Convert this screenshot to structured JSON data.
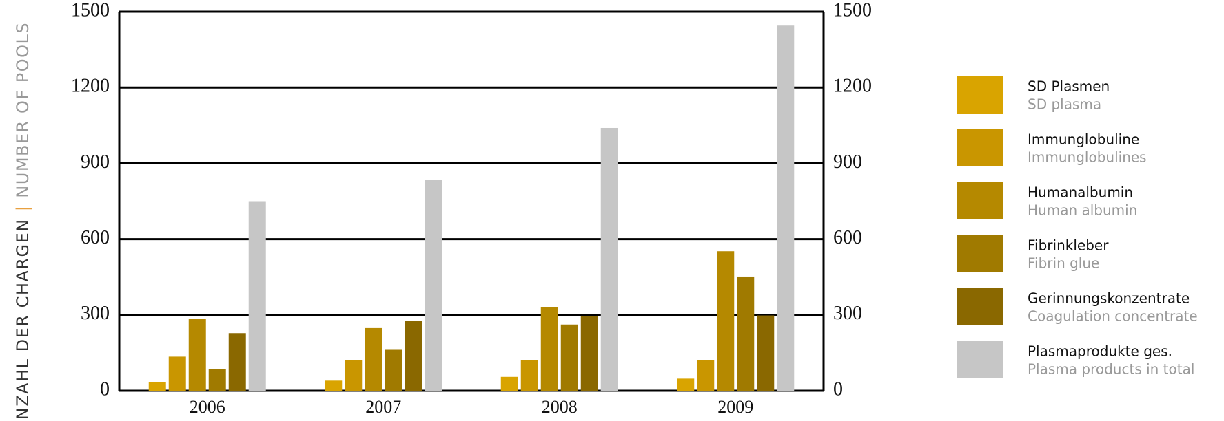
{
  "chart_data": {
    "type": "bar",
    "ylabel": "ANZAHL DER CHARGEN",
    "ylabel_separator": "|",
    "ylabel_en": "NUMBER OF POOLS",
    "categories": [
      "2006",
      "2007",
      "2008",
      "2009"
    ],
    "series": [
      {
        "name": "SD Plasmen",
        "name_en": "SD plasma",
        "color": "#d9a400",
        "values": [
          35,
          40,
          55,
          48
        ]
      },
      {
        "name": "Immunglobuline",
        "name_en": "Immunglobulines",
        "color": "#c99600",
        "values": [
          135,
          120,
          120,
          120
        ]
      },
      {
        "name": "Humanalbumin",
        "name_en": "Human albumin",
        "color": "#b58900",
        "values": [
          285,
          248,
          332,
          552
        ]
      },
      {
        "name": "Fibrinkleber",
        "name_en": "Fibrin glue",
        "color": "#a07a00",
        "values": [
          85,
          162,
          262,
          452
        ]
      },
      {
        "name": "Gerinnungskonzentrate",
        "name_en": "Coagulation concentrate",
        "color": "#8a6800",
        "values": [
          228,
          275,
          295,
          298
        ]
      },
      {
        "name": "Plasmaprodukte ges.",
        "name_en": "Plasma products in total",
        "color": "#c6c6c6",
        "values": [
          750,
          835,
          1040,
          1445
        ]
      }
    ],
    "ylim": [
      0,
      1500
    ],
    "yticks": [
      0,
      300,
      600,
      900,
      1200,
      1500
    ],
    "y2lim": [
      0,
      1500
    ],
    "y2ticks": [
      0,
      300,
      600,
      900,
      1200,
      1500
    ],
    "grid": true,
    "legend": "right"
  }
}
